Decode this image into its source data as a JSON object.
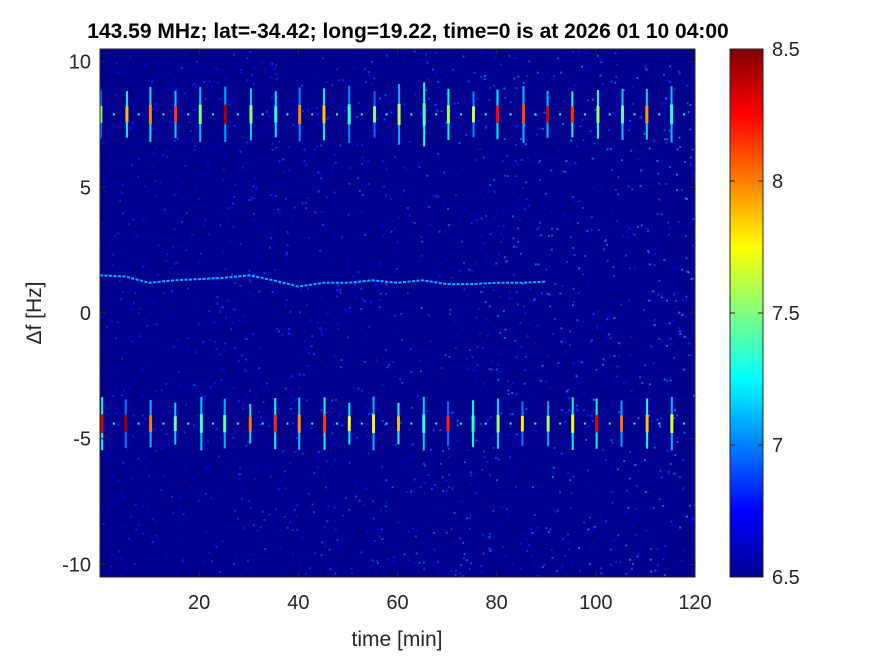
{
  "chart_data": {
    "type": "heatmap",
    "title": "143.59 MHz;  lat=-34.42; long=19.22, time=0 is at 2026 01 10 04:00",
    "xlabel": "time [min]",
    "ylabel": "Δf [Hz]",
    "xlim": [
      0,
      120
    ],
    "ylim": [
      -10.5,
      10.5
    ],
    "x_ticks": [
      20,
      40,
      60,
      80,
      100,
      120
    ],
    "y_ticks": [
      10,
      5,
      0,
      -5,
      -10
    ],
    "colorbar": {
      "colormap": "jet",
      "clim": [
        6.5,
        8.5
      ],
      "ticks": [
        8.5,
        8,
        7.5,
        7,
        6.5
      ]
    },
    "background_level": 6.55,
    "periodic_bursts": {
      "period_min": 5,
      "first_min": 0.3,
      "last_min": 120,
      "upper_band": {
        "center_hz": 7.9,
        "halfwidth_hz": 1.3
      },
      "lower_band": {
        "center_hz": -4.4,
        "halfwidth_hz": 1.1
      }
    },
    "drifting_signal": {
      "x": [
        0,
        5,
        10,
        15,
        20,
        25,
        30,
        35,
        40,
        45,
        50,
        55,
        60,
        65,
        70,
        75,
        80,
        85,
        90
      ],
      "y": [
        1.5,
        1.45,
        1.2,
        1.3,
        1.35,
        1.4,
        1.5,
        1.3,
        1.05,
        1.2,
        1.2,
        1.3,
        1.2,
        1.3,
        1.15,
        1.15,
        1.2,
        1.2,
        1.25
      ],
      "level": 7.1
    }
  }
}
